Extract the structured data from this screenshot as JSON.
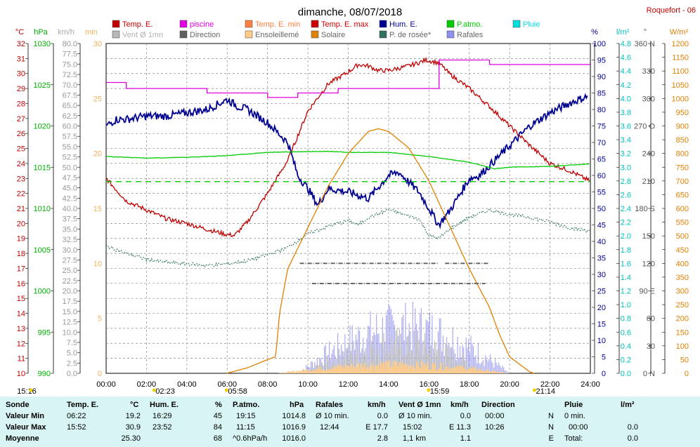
{
  "title": "dimanche, 08/07/2018",
  "station": "Roquefort - 06",
  "colors": {
    "temp": "#c00000",
    "piscine": "#e000e0",
    "temp_min": "#ff8040",
    "temp_max": "#d00000",
    "hum": "#000090",
    "patm": "#00cc00",
    "pluie": "#00e0e0",
    "vent": "#b8b8b8",
    "direction": "#606060",
    "ensoleillement": "#ffcc88",
    "solaire": "#e08000",
    "rosee": "#307060",
    "rafales": "#9090ee"
  },
  "legend": [
    {
      "label": "Temp. E.",
      "key": "temp"
    },
    {
      "label": "piscine",
      "key": "piscine"
    },
    {
      "label": "Temp. E. min",
      "key": "temp_min"
    },
    {
      "label": "Temp. E. max",
      "key": "temp_max"
    },
    {
      "label": "Hum. E.",
      "key": "hum"
    },
    {
      "label": "P.atmo.",
      "key": "patm"
    },
    {
      "label": "Pluie",
      "key": "pluie"
    },
    {
      "label": "Vent Ø 1mn",
      "key": "vent"
    },
    {
      "label": "Direction",
      "key": "direction"
    },
    {
      "label": "Ensoleillemé",
      "key": "ensoleillement"
    },
    {
      "label": "Solaire",
      "key": "solaire"
    },
    {
      "label": "P. de rosée*",
      "key": "rosee"
    },
    {
      "label": "Rafales",
      "key": "rafales"
    }
  ],
  "chart_data": {
    "type": "line",
    "x_ticks": [
      "00:00",
      "02:00",
      "04:00",
      "06:00",
      "08:00",
      "10:00",
      "12:00",
      "14:00",
      "16:00",
      "18:00",
      "20:00",
      "22:00",
      "24:00"
    ],
    "grid": true,
    "axes": {
      "temp": {
        "unit": "°C",
        "range": [
          10,
          32
        ],
        "step": 1
      },
      "patm": {
        "unit": "hPa",
        "range": [
          990,
          1030
        ],
        "step": 5
      },
      "vent": {
        "unit": "km/h",
        "range": [
          0,
          80
        ],
        "step": 2.5
      },
      "min": {
        "unit": "min",
        "range": [
          0,
          30
        ],
        "step": 5
      },
      "hum": {
        "unit": "%",
        "range": [
          0,
          100
        ],
        "step": 5
      },
      "pluie": {
        "unit": "l/m²",
        "range": [
          0,
          4.8
        ],
        "step": 0.2
      },
      "dir": {
        "unit": "°",
        "ticks": [
          "0 N",
          "30",
          "60",
          "90 E",
          "120",
          "150",
          "180 S",
          "210",
          "240",
          "270 O",
          "300",
          "330",
          "360 N"
        ]
      },
      "solaire": {
        "unit": "W/m²",
        "range": [
          0,
          1200
        ],
        "step": 50
      }
    },
    "series": [
      {
        "name": "Temp. E.",
        "key": "temp",
        "axis": "temp",
        "points": [
          [
            0,
            23.0
          ],
          [
            1,
            21.5
          ],
          [
            2,
            20.9
          ],
          [
            3,
            20.3
          ],
          [
            4,
            20.0
          ],
          [
            5,
            19.6
          ],
          [
            6,
            19.25
          ],
          [
            6.37,
            19.2
          ],
          [
            7,
            20.1
          ],
          [
            8,
            22.0
          ],
          [
            9,
            24.2
          ],
          [
            10,
            27.5
          ],
          [
            11,
            29.3
          ],
          [
            12,
            30.1
          ],
          [
            12.5,
            30.6
          ],
          [
            13,
            30.5
          ],
          [
            13.5,
            30.2
          ],
          [
            14,
            30.2
          ],
          [
            15,
            30.5
          ],
          [
            15.87,
            30.9
          ],
          [
            16.5,
            30.7
          ],
          [
            17,
            30.0
          ],
          [
            18,
            29.0
          ],
          [
            19,
            27.8
          ],
          [
            20,
            26.5
          ],
          [
            21,
            25.2
          ],
          [
            22,
            24.0
          ],
          [
            23,
            23.5
          ],
          [
            24,
            22.8
          ]
        ]
      },
      {
        "name": "piscine",
        "key": "piscine",
        "axis": "temp",
        "steps": [
          [
            0,
            29.4
          ],
          [
            1,
            29.0
          ],
          [
            5,
            28.7
          ],
          [
            8,
            28.4
          ],
          [
            9.5,
            28.7
          ],
          [
            11.5,
            29.0
          ],
          [
            16.5,
            30.9
          ],
          [
            19,
            30.6
          ],
          [
            24,
            30.6
          ]
        ]
      },
      {
        "name": "Hum. E.",
        "key": "hum",
        "axis": "hum",
        "points": [
          [
            0,
            75
          ],
          [
            0.5,
            77
          ],
          [
            1,
            77
          ],
          [
            2,
            78
          ],
          [
            3,
            78
          ],
          [
            4,
            79
          ],
          [
            5,
            80
          ],
          [
            6,
            83
          ],
          [
            6.5,
            81
          ],
          [
            7,
            80
          ],
          [
            8,
            76
          ],
          [
            9,
            70
          ],
          [
            9.5,
            60
          ],
          [
            10,
            56
          ],
          [
            10.5,
            51
          ],
          [
            11,
            56
          ],
          [
            12,
            55
          ],
          [
            13,
            53
          ],
          [
            14,
            60
          ],
          [
            14.5,
            61
          ],
          [
            15,
            58
          ],
          [
            15.5,
            55
          ],
          [
            16,
            50
          ],
          [
            16.48,
            45
          ],
          [
            17,
            49
          ],
          [
            17.5,
            54
          ],
          [
            18,
            59
          ],
          [
            18.5,
            60
          ],
          [
            19,
            63
          ],
          [
            20,
            69
          ],
          [
            21,
            75
          ],
          [
            22,
            79
          ],
          [
            23,
            82
          ],
          [
            23.87,
            84
          ]
        ]
      },
      {
        "name": "P.atmo.",
        "key": "patm",
        "axis": "patm",
        "points": [
          [
            0,
            1016.3
          ],
          [
            2,
            1016.1
          ],
          [
            4,
            1016.2
          ],
          [
            6,
            1016.4
          ],
          [
            8,
            1016.8
          ],
          [
            10,
            1016.9
          ],
          [
            11.25,
            1016.9
          ],
          [
            12,
            1016.8
          ],
          [
            14,
            1016.8
          ],
          [
            16,
            1016.3
          ],
          [
            18,
            1015.6
          ],
          [
            19.25,
            1014.8
          ],
          [
            20,
            1015.0
          ],
          [
            22,
            1015.1
          ],
          [
            24,
            1015.4
          ]
        ]
      },
      {
        "name": "P.atmo. ref",
        "key": "patm",
        "axis": "patm",
        "dashed": true,
        "points": [
          [
            0,
            1013.25
          ],
          [
            24,
            1013.25
          ]
        ]
      },
      {
        "name": "P. de rosée*",
        "key": "rosee",
        "axis": "temp",
        "dotted": true,
        "points": [
          [
            0,
            18.5
          ],
          [
            1,
            18.0
          ],
          [
            2,
            17.6
          ],
          [
            3,
            17.4
          ],
          [
            4,
            17.3
          ],
          [
            5,
            17.2
          ],
          [
            6,
            17.3
          ],
          [
            7,
            17.5
          ],
          [
            8,
            17.9
          ],
          [
            9,
            18.4
          ],
          [
            10,
            19.3
          ],
          [
            11,
            19.8
          ],
          [
            12,
            20.2
          ],
          [
            12.5,
            19.9
          ],
          [
            13,
            20.4
          ],
          [
            14,
            20.9
          ],
          [
            15,
            20.5
          ],
          [
            15.5,
            20.3
          ],
          [
            16,
            19.2
          ],
          [
            16.5,
            19.0
          ],
          [
            17,
            19.6
          ],
          [
            18,
            20.4
          ],
          [
            19,
            20.9
          ],
          [
            20,
            20.6
          ],
          [
            21,
            20.4
          ],
          [
            22,
            20.1
          ],
          [
            23,
            19.7
          ],
          [
            24,
            19.5
          ]
        ]
      },
      {
        "name": "Solaire",
        "key": "solaire",
        "axis": "solaire",
        "points": [
          [
            5.97,
            0
          ],
          [
            7,
            20
          ],
          [
            8,
            50
          ],
          [
            8.4,
            60
          ],
          [
            8.6,
            220
          ],
          [
            9,
            380
          ],
          [
            10,
            530
          ],
          [
            11,
            680
          ],
          [
            12,
            800
          ],
          [
            13,
            880
          ],
          [
            13.5,
            890
          ],
          [
            14,
            880
          ],
          [
            15,
            820
          ],
          [
            16,
            700
          ],
          [
            17,
            540
          ],
          [
            18,
            380
          ],
          [
            19,
            240
          ],
          [
            19.5,
            140
          ],
          [
            20,
            60
          ],
          [
            21,
            5
          ],
          [
            21.23,
            0
          ]
        ]
      },
      {
        "name": "Direction",
        "key": "direction",
        "axis": "dir",
        "segments": [
          [
            9.6,
            16.5,
            120
          ],
          [
            16.8,
            19.0,
            120
          ],
          [
            10.2,
            18.8,
            98
          ]
        ]
      }
    ],
    "bars": [
      {
        "name": "Rafales",
        "key": "rafales",
        "axis": "vent",
        "from": 9.5,
        "to": 20.0,
        "max": 17.7
      },
      {
        "name": "Vent Ø 1mn",
        "key": "vent",
        "axis": "vent",
        "from": 9.8,
        "to": 19.0,
        "max": 11.3
      },
      {
        "name": "Ensoleillemé",
        "key": "ensoleillement",
        "axis": "min",
        "from": 8.5,
        "to": 20.0,
        "max": 1.2
      }
    ],
    "time_markers": [
      {
        "label": "15:16",
        "time": -1.5,
        "icon": "moon"
      },
      {
        "label": "02:23",
        "time": 2.38,
        "icon": "sun"
      },
      {
        "label": "05:58",
        "time": 5.97,
        "icon": "sun"
      },
      {
        "label": "15:59",
        "time": 15.98,
        "icon": "moon"
      },
      {
        "label": "21:14",
        "time": 21.23,
        "icon": "sun"
      }
    ]
  },
  "stats": {
    "headers": {
      "sonde": "Sonde",
      "valmin": "Valeur Min",
      "valmax": "Valeur Max",
      "moyenne": "Moyenne"
    },
    "temp": {
      "label": "Temp. E.",
      "unit": "°C",
      "min_time": "06:22",
      "min": "19.2",
      "max_time": "15:52",
      "max": "30.9",
      "avg": "25.30"
    },
    "hum": {
      "label": "Hum. E.",
      "unit": "%",
      "min_time": "16:29",
      "min": "45",
      "max_time": "23:52",
      "max": "84",
      "avg": "68"
    },
    "patm": {
      "label": "P.atmo.",
      "unit": "hPa",
      "min_time": "19:15",
      "min": "1014.8",
      "max_time": "11:15",
      "max": "1016.9",
      "trend": "^0.6hPa/h",
      "avg": "1016.0"
    },
    "rafales": {
      "label": "Rafales",
      "unit": "km/h",
      "r1a": "Ø 10 min.",
      "r1b": "0.0",
      "r2a": "12:44",
      "r2b": "E 17.7",
      "avg": "2.8"
    },
    "vent": {
      "label": "Vent Ø 1mn",
      "unit": "km/h",
      "r1a": "Ø 10 min.",
      "r1b": "0.0",
      "r2a": "15:02",
      "r2b": "E 11.3",
      "r3a": "1,1 km",
      "avg": "1.1"
    },
    "direction": {
      "label": "Direction",
      "r1a": "00:00",
      "r1b": "N",
      "r2a": "10:26",
      "r2b": "N",
      "avg": "E"
    },
    "pluie": {
      "label": "Pluie",
      "unit": "l/m²",
      "r1a": "0 min.",
      "r2a": "00:00",
      "r2b": "0.0",
      "r3a": "Total:",
      "avg": "0.0"
    }
  }
}
